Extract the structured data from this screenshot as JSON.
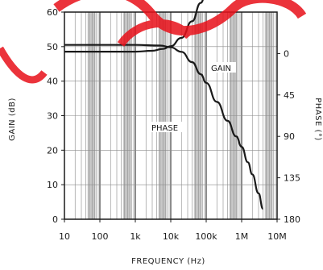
{
  "chart_data": {
    "type": "line",
    "title": "",
    "xlabel": "FREQUENCY (Hz)",
    "ylabel_left": "GAIN (dB)",
    "ylabel_right": "PHASE (°)",
    "x_scale": "log",
    "xlim": [
      10,
      10000000
    ],
    "x_ticks": [
      10,
      100,
      1000,
      10000,
      100000,
      1000000,
      10000000
    ],
    "x_tick_labels": [
      "10",
      "100",
      "1k",
      "10k",
      "100k",
      "1M",
      "10M"
    ],
    "ylim_left": [
      0,
      60
    ],
    "y_ticks_left": [
      0,
      10,
      20,
      30,
      40,
      50,
      60
    ],
    "y_tick_labels_left": [
      "0",
      "10",
      "20",
      "30",
      "40",
      "50",
      "60"
    ],
    "ylim_right_inverted": [
      180,
      -45
    ],
    "y_ticks_right": [
      0,
      45,
      90,
      135,
      180
    ],
    "y_tick_labels_right": [
      "0",
      "45",
      "90",
      "135",
      "180"
    ],
    "grid": true,
    "series": [
      {
        "name": "GAIN",
        "axis": "left",
        "x": [
          10,
          100,
          1000,
          5000,
          10000,
          20000,
          40000,
          70000,
          100000,
          200000,
          400000,
          700000,
          1000000,
          1500000,
          2000000,
          3000000,
          4000000
        ],
        "values": [
          50.5,
          50.5,
          50.5,
          50.3,
          49.8,
          48.5,
          45.5,
          42.0,
          39.5,
          34.0,
          28.5,
          24.0,
          21.0,
          16.5,
          13.0,
          7.5,
          3.0
        ]
      },
      {
        "name": "PHASE",
        "axis": "right",
        "x": [
          10,
          100,
          1000,
          3000,
          6000,
          10000,
          20000,
          40000,
          70000,
          100000,
          200000,
          400000,
          700000,
          1000000,
          2000000,
          3000000,
          5000000
        ],
        "values": [
          -2,
          -2,
          -2,
          -3,
          -5,
          -8,
          -17,
          -35,
          -55,
          -67,
          -82,
          -92,
          -100,
          -110,
          -140,
          -160,
          -180
        ]
      }
    ],
    "annotations": [
      "GAIN",
      "PHASE"
    ]
  },
  "watermark": {
    "color": "#e8101a",
    "text": "SOC"
  },
  "colors": {
    "line": "#1a1a1a",
    "grid": "#8a8a8a",
    "band": "#9a9a9a"
  }
}
